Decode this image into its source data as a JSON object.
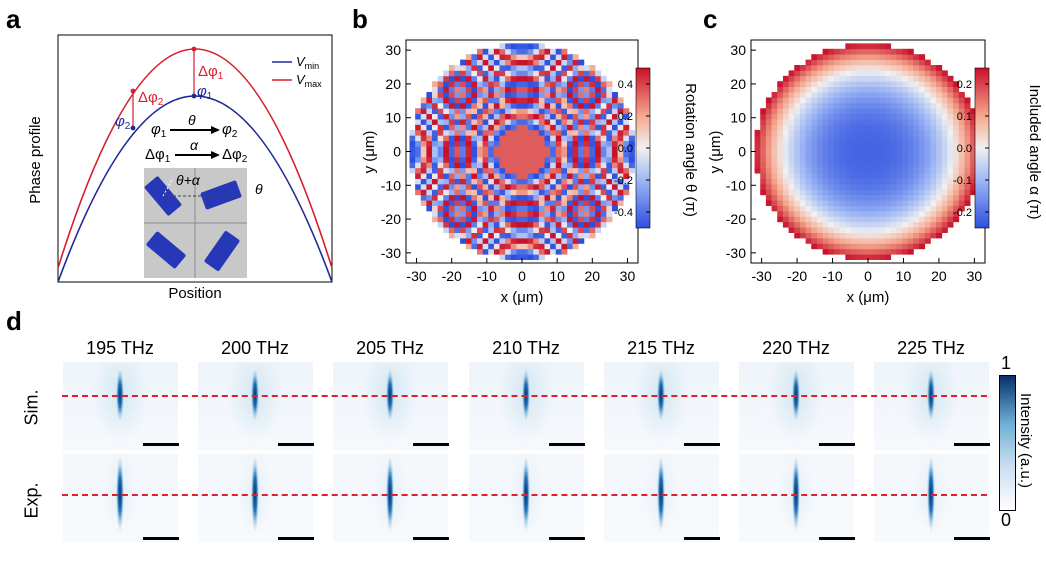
{
  "panels": {
    "a": {
      "letter": "a",
      "xlabel": "Position",
      "ylabel": "Phase profile",
      "legend": [
        {
          "main": "V",
          "sub": "min",
          "color": "#1f2a9a"
        },
        {
          "main": "V",
          "sub": "max",
          "color": "#d81e2c"
        }
      ],
      "annotations": {
        "dphi1": "Δφ",
        "dphi1_sub": "1",
        "dphi2": "Δφ",
        "dphi2_sub": "2",
        "phi1": "φ",
        "phi1_sub": "1",
        "phi2": "φ",
        "phi2_sub": "2",
        "rel1_from": "φ",
        "rel1_from_sub": "1",
        "rel1_op": "θ",
        "rel1_to": "φ",
        "rel1_to_sub": "2",
        "rel2_from": "Δφ",
        "rel2_from_sub": "1",
        "rel2_op": "α",
        "rel2_to": "Δφ",
        "rel2_to_sub": "2",
        "inset_theta_alpha": "θ+α",
        "inset_theta": "θ"
      }
    },
    "b": {
      "letter": "b",
      "xlabel": "x (μm)",
      "ylabel": "y (μm)",
      "colorbar_label": "Rotation angle θ (π)",
      "colorbar_ticks": [
        "0.4",
        "0.2",
        "0.0",
        "-0.2",
        "-0.4"
      ]
    },
    "c": {
      "letter": "c",
      "xlabel": "x (μm)",
      "ylabel": "y (μm)",
      "colorbar_label": "Included angle α (π)",
      "colorbar_ticks": [
        "0.2",
        "0.1",
        "0.0",
        "-0.1",
        "-0.2"
      ]
    },
    "d": {
      "letter": "d",
      "frequencies": [
        "195 THz",
        "200 THz",
        "205 THz",
        "210 THz",
        "215 THz",
        "220 THz",
        "225 THz"
      ],
      "rows": [
        "Sim.",
        "Exp."
      ],
      "colorbar_label": "Intensity (a.u.)",
      "colorbar_max": "1",
      "colorbar_min": "0"
    }
  },
  "chart_data": [
    {
      "type": "line",
      "title": "",
      "xlabel": "Position",
      "ylabel": "Phase profile",
      "series": [
        {
          "name": "V_max",
          "color": "#d81e2c",
          "shape": "parabola",
          "peak": 1.0,
          "edge": 0.0
        },
        {
          "name": "V_min",
          "color": "#1f2a9a",
          "shape": "parabola",
          "peak": 0.82,
          "edge": -0.18
        }
      ]
    },
    {
      "type": "heatmap",
      "title": "",
      "xlabel": "x (μm)",
      "ylabel": "y (μm)",
      "x_ticks": [
        -30,
        -20,
        -10,
        0,
        10,
        20,
        30
      ],
      "y_ticks": [
        30,
        20,
        10,
        0,
        -10,
        -20,
        -30
      ],
      "xlim": [
        -33,
        33
      ],
      "ylim": [
        -33,
        33
      ],
      "aperture_radius": 32,
      "colorbar": {
        "label": "Rotation angle θ (π)",
        "min": -0.5,
        "max": 0.5,
        "ticks": [
          0.4,
          0.2,
          0.0,
          -0.2,
          -0.4
        ]
      },
      "pattern": "concentric rings (Fresnel zones), center ≈ 0.35"
    },
    {
      "type": "heatmap",
      "title": "",
      "xlabel": "x (μm)",
      "ylabel": "y (μm)",
      "x_ticks": [
        -30,
        -20,
        -10,
        0,
        10,
        20,
        30
      ],
      "y_ticks": [
        30,
        20,
        10,
        0,
        -10,
        -20,
        -30
      ],
      "xlim": [
        -33,
        33
      ],
      "ylim": [
        -33,
        33
      ],
      "aperture_radius": 32,
      "colorbar": {
        "label": "Included angle α (π)",
        "min": -0.25,
        "max": 0.25,
        "ticks": [
          0.2,
          0.1,
          0.0,
          -0.1,
          -0.2
        ]
      },
      "pattern": "radial gradient, ≈ -0.22 at center rising to ≈ 0.25 at edge"
    },
    {
      "type": "heatmap",
      "title": "",
      "categories": [
        "195 THz",
        "200 THz",
        "205 THz",
        "210 THz",
        "215 THz",
        "220 THz",
        "225 THz"
      ],
      "rows": [
        "Sim.",
        "Exp."
      ],
      "colorbar": {
        "label": "Intensity (a.u.)",
        "min": 0,
        "max": 1
      }
    }
  ]
}
